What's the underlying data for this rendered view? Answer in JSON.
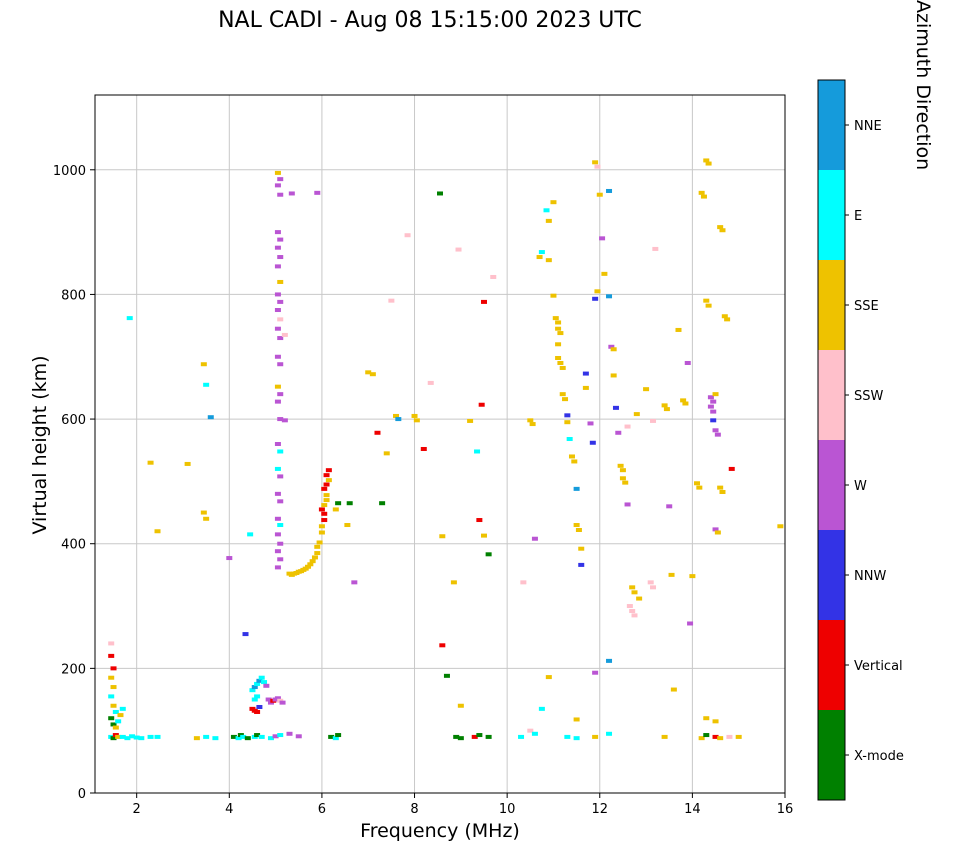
{
  "title": "NAL CADI - Aug 08 15:15:00 2023 UTC",
  "chart_data": {
    "type": "scatter",
    "title": "NAL CADI - Aug 08 15:15:00 2023 UTC",
    "xlabel": "Frequency (MHz)",
    "ylabel": "Virtual height (km)",
    "xlim": [
      1.1,
      16
    ],
    "ylim": [
      0,
      1120
    ],
    "xticks": [
      2,
      4,
      6,
      8,
      10,
      12,
      14,
      16
    ],
    "yticks": [
      0,
      200,
      400,
      600,
      800,
      1000
    ],
    "grid": true,
    "grid_color": "#c8c8c8",
    "colorbar": {
      "label": "Azimuth Direction",
      "categories": [
        {
          "code": "NNE",
          "label": "NNE",
          "color": "#159BDB"
        },
        {
          "code": "E",
          "label": "E",
          "color": "#00FFFF"
        },
        {
          "code": "SSE",
          "label": "SSE",
          "color": "#EEC200"
        },
        {
          "code": "SSW",
          "label": "SSW",
          "color": "#FFC0CB"
        },
        {
          "code": "W",
          "label": "W",
          "color": "#BA55D3"
        },
        {
          "code": "NNW",
          "label": "NNW",
          "color": "#3333E6"
        },
        {
          "code": "V",
          "label": "Vertical",
          "color": "#EE0000"
        },
        {
          "code": "X",
          "label": "X-mode",
          "color": "#008000"
        }
      ]
    },
    "points_format": [
      "frequency_mhz",
      "virtual_height_km",
      "azimuth_code"
    ],
    "points": [
      [
        1.45,
        90,
        "E"
      ],
      [
        1.5,
        88,
        "X"
      ],
      [
        1.55,
        93,
        "V"
      ],
      [
        1.6,
        90,
        "SSE"
      ],
      [
        1.7,
        90,
        "E"
      ],
      [
        1.8,
        88,
        "E"
      ],
      [
        1.9,
        91,
        "E"
      ],
      [
        2.0,
        89,
        "E"
      ],
      [
        2.1,
        88,
        "E"
      ],
      [
        2.3,
        90,
        "E"
      ],
      [
        2.45,
        90,
        "E"
      ],
      [
        3.3,
        88,
        "SSE"
      ],
      [
        3.5,
        90,
        "E"
      ],
      [
        3.7,
        88,
        "E"
      ],
      [
        4.1,
        90,
        "X"
      ],
      [
        4.2,
        88,
        "E"
      ],
      [
        4.25,
        93,
        "X"
      ],
      [
        4.3,
        90,
        "E"
      ],
      [
        4.4,
        88,
        "X"
      ],
      [
        4.55,
        90,
        "E"
      ],
      [
        4.6,
        93,
        "X"
      ],
      [
        4.7,
        90,
        "E"
      ],
      [
        4.9,
        88,
        "E"
      ],
      [
        5.0,
        91,
        "W"
      ],
      [
        5.1,
        93,
        "E"
      ],
      [
        5.3,
        95,
        "W"
      ],
      [
        5.5,
        91,
        "W"
      ],
      [
        6.2,
        90,
        "X"
      ],
      [
        6.3,
        88,
        "E"
      ],
      [
        6.35,
        93,
        "X"
      ],
      [
        8.9,
        90,
        "X"
      ],
      [
        9.0,
        88,
        "X"
      ],
      [
        9.3,
        90,
        "V"
      ],
      [
        9.4,
        93,
        "X"
      ],
      [
        9.6,
        90,
        "X"
      ],
      [
        10.3,
        90,
        "E"
      ],
      [
        10.5,
        100,
        "SSW"
      ],
      [
        10.6,
        95,
        "E"
      ],
      [
        11.3,
        90,
        "E"
      ],
      [
        11.5,
        88,
        "E"
      ],
      [
        11.9,
        90,
        "SSE"
      ],
      [
        12.2,
        95,
        "E"
      ],
      [
        13.4,
        90,
        "SSE"
      ],
      [
        14.2,
        88,
        "SSE"
      ],
      [
        14.3,
        93,
        "X"
      ],
      [
        14.5,
        90,
        "V"
      ],
      [
        14.6,
        88,
        "SSE"
      ],
      [
        14.8,
        90,
        "SSW"
      ],
      [
        15.0,
        90,
        "SSE"
      ],
      [
        1.45,
        240,
        "SSW"
      ],
      [
        1.45,
        220,
        "V"
      ],
      [
        1.5,
        200,
        "V"
      ],
      [
        1.45,
        185,
        "SSE"
      ],
      [
        1.5,
        170,
        "SSE"
      ],
      [
        1.45,
        155,
        "E"
      ],
      [
        1.5,
        140,
        "SSE"
      ],
      [
        1.55,
        130,
        "E"
      ],
      [
        1.45,
        120,
        "X"
      ],
      [
        1.5,
        110,
        "X"
      ],
      [
        1.55,
        105,
        "SSE"
      ],
      [
        1.6,
        115,
        "E"
      ],
      [
        1.65,
        125,
        "SSE"
      ],
      [
        1.7,
        135,
        "E"
      ],
      [
        1.85,
        762,
        "E"
      ],
      [
        2.3,
        530,
        "SSE"
      ],
      [
        2.45,
        420,
        "SSE"
      ],
      [
        3.1,
        528,
        "SSE"
      ],
      [
        3.45,
        688,
        "SSE"
      ],
      [
        3.5,
        655,
        "E"
      ],
      [
        3.6,
        603,
        "NNE"
      ],
      [
        3.45,
        450,
        "SSE"
      ],
      [
        3.5,
        440,
        "SSE"
      ],
      [
        4.0,
        377,
        "W"
      ],
      [
        4.35,
        255,
        "NNW"
      ],
      [
        4.45,
        415,
        "E"
      ],
      [
        4.5,
        135,
        "V"
      ],
      [
        4.55,
        132,
        "V"
      ],
      [
        4.6,
        130,
        "V"
      ],
      [
        4.65,
        138,
        "NNW"
      ],
      [
        4.55,
        150,
        "E"
      ],
      [
        4.6,
        155,
        "E"
      ],
      [
        4.5,
        165,
        "E"
      ],
      [
        4.55,
        170,
        "NNE"
      ],
      [
        4.6,
        175,
        "E"
      ],
      [
        4.65,
        180,
        "NNE"
      ],
      [
        4.7,
        185,
        "E"
      ],
      [
        4.75,
        178,
        "E"
      ],
      [
        4.8,
        172,
        "W"
      ],
      [
        4.85,
        150,
        "W"
      ],
      [
        4.9,
        145,
        "W"
      ],
      [
        4.95,
        148,
        "V"
      ],
      [
        5.0,
        150,
        "W"
      ],
      [
        5.05,
        152,
        "W"
      ],
      [
        5.1,
        148,
        "SSW"
      ],
      [
        5.15,
        145,
        "W"
      ],
      [
        5.05,
        995,
        "SSE"
      ],
      [
        5.1,
        985,
        "W"
      ],
      [
        5.05,
        975,
        "W"
      ],
      [
        5.1,
        960,
        "W"
      ],
      [
        5.35,
        962,
        "W"
      ],
      [
        5.05,
        900,
        "W"
      ],
      [
        5.1,
        888,
        "W"
      ],
      [
        5.05,
        875,
        "W"
      ],
      [
        5.1,
        860,
        "W"
      ],
      [
        5.05,
        845,
        "W"
      ],
      [
        5.1,
        820,
        "SSE"
      ],
      [
        5.05,
        800,
        "W"
      ],
      [
        5.1,
        788,
        "W"
      ],
      [
        5.05,
        775,
        "W"
      ],
      [
        5.1,
        760,
        "SSW"
      ],
      [
        5.05,
        745,
        "W"
      ],
      [
        5.1,
        730,
        "W"
      ],
      [
        5.2,
        735,
        "SSW"
      ],
      [
        5.05,
        700,
        "W"
      ],
      [
        5.1,
        688,
        "W"
      ],
      [
        5.05,
        652,
        "SSE"
      ],
      [
        5.1,
        640,
        "W"
      ],
      [
        5.05,
        628,
        "W"
      ],
      [
        5.1,
        600,
        "W"
      ],
      [
        5.2,
        598,
        "W"
      ],
      [
        5.05,
        560,
        "W"
      ],
      [
        5.1,
        548,
        "E"
      ],
      [
        5.05,
        520,
        "E"
      ],
      [
        5.1,
        508,
        "W"
      ],
      [
        5.05,
        480,
        "W"
      ],
      [
        5.1,
        468,
        "W"
      ],
      [
        5.05,
        440,
        "W"
      ],
      [
        5.1,
        430,
        "E"
      ],
      [
        5.05,
        415,
        "W"
      ],
      [
        5.1,
        400,
        "W"
      ],
      [
        5.05,
        388,
        "W"
      ],
      [
        5.1,
        375,
        "W"
      ],
      [
        5.05,
        362,
        "W"
      ],
      [
        5.9,
        963,
        "W"
      ],
      [
        5.3,
        352,
        "SSE"
      ],
      [
        5.35,
        350,
        "SSE"
      ],
      [
        5.4,
        352,
        "SSE"
      ],
      [
        5.45,
        353,
        "SSE"
      ],
      [
        5.5,
        355,
        "SSE"
      ],
      [
        5.55,
        356,
        "SSE"
      ],
      [
        5.6,
        358,
        "SSE"
      ],
      [
        5.65,
        360,
        "SSE"
      ],
      [
        5.7,
        363,
        "SSE"
      ],
      [
        5.75,
        367,
        "SSE"
      ],
      [
        5.8,
        372,
        "SSE"
      ],
      [
        5.85,
        378,
        "SSE"
      ],
      [
        5.9,
        385,
        "SSE"
      ],
      [
        5.9,
        395,
        "SSE"
      ],
      [
        5.95,
        402,
        "SSE"
      ],
      [
        6.0,
        418,
        "SSE"
      ],
      [
        6.0,
        428,
        "SSE"
      ],
      [
        6.05,
        438,
        "V"
      ],
      [
        6.05,
        448,
        "V"
      ],
      [
        6.0,
        455,
        "V"
      ],
      [
        6.05,
        462,
        "SSE"
      ],
      [
        6.1,
        470,
        "SSE"
      ],
      [
        6.1,
        478,
        "SSE"
      ],
      [
        6.05,
        488,
        "V"
      ],
      [
        6.1,
        495,
        "V"
      ],
      [
        6.15,
        502,
        "SSE"
      ],
      [
        6.1,
        510,
        "V"
      ],
      [
        6.15,
        518,
        "V"
      ],
      [
        6.3,
        455,
        "SSE"
      ],
      [
        6.35,
        465,
        "X"
      ],
      [
        6.55,
        430,
        "SSE"
      ],
      [
        6.6,
        465,
        "X"
      ],
      [
        6.7,
        338,
        "W"
      ],
      [
        7.0,
        675,
        "SSE"
      ],
      [
        7.1,
        672,
        "SSE"
      ],
      [
        7.2,
        578,
        "V"
      ],
      [
        7.4,
        545,
        "SSE"
      ],
      [
        7.3,
        465,
        "X"
      ],
      [
        7.5,
        790,
        "SSW"
      ],
      [
        7.6,
        605,
        "SSE"
      ],
      [
        7.65,
        600,
        "NNE"
      ],
      [
        7.85,
        895,
        "SSW"
      ],
      [
        8.0,
        605,
        "SSE"
      ],
      [
        8.05,
        598,
        "SSE"
      ],
      [
        8.2,
        552,
        "V"
      ],
      [
        8.35,
        658,
        "SSW"
      ],
      [
        8.55,
        962,
        "X"
      ],
      [
        8.6,
        412,
        "SSE"
      ],
      [
        8.6,
        237,
        "V"
      ],
      [
        8.7,
        188,
        "X"
      ],
      [
        8.85,
        338,
        "SSE"
      ],
      [
        8.95,
        872,
        "SSW"
      ],
      [
        9.0,
        140,
        "SSE"
      ],
      [
        9.2,
        597,
        "SSE"
      ],
      [
        9.35,
        548,
        "E"
      ],
      [
        9.4,
        438,
        "V"
      ],
      [
        9.45,
        623,
        "V"
      ],
      [
        9.5,
        413,
        "SSE"
      ],
      [
        9.5,
        788,
        "V"
      ],
      [
        9.6,
        383,
        "X"
      ],
      [
        9.7,
        828,
        "SSW"
      ],
      [
        10.35,
        338,
        "SSW"
      ],
      [
        10.5,
        598,
        "SSE"
      ],
      [
        10.55,
        592,
        "SSE"
      ],
      [
        10.6,
        408,
        "W"
      ],
      [
        10.7,
        860,
        "SSE"
      ],
      [
        10.75,
        868,
        "E"
      ],
      [
        10.75,
        135,
        "E"
      ],
      [
        10.85,
        935,
        "E"
      ],
      [
        10.9,
        918,
        "SSE"
      ],
      [
        10.9,
        855,
        "SSE"
      ],
      [
        10.9,
        186,
        "SSE"
      ],
      [
        11.0,
        948,
        "SSE"
      ],
      [
        11.0,
        798,
        "SSE"
      ],
      [
        11.05,
        762,
        "SSE"
      ],
      [
        11.1,
        755,
        "SSE"
      ],
      [
        11.1,
        745,
        "SSE"
      ],
      [
        11.15,
        738,
        "SSE"
      ],
      [
        11.1,
        720,
        "SSE"
      ],
      [
        11.1,
        698,
        "SSE"
      ],
      [
        11.15,
        690,
        "SSE"
      ],
      [
        11.2,
        682,
        "SSE"
      ],
      [
        11.2,
        640,
        "SSE"
      ],
      [
        11.25,
        632,
        "SSE"
      ],
      [
        11.3,
        606,
        "NNW"
      ],
      [
        11.3,
        595,
        "SSE"
      ],
      [
        11.35,
        568,
        "E"
      ],
      [
        11.4,
        540,
        "SSE"
      ],
      [
        11.45,
        532,
        "SSE"
      ],
      [
        11.5,
        488,
        "NNE"
      ],
      [
        11.5,
        430,
        "SSE"
      ],
      [
        11.55,
        422,
        "SSE"
      ],
      [
        11.6,
        392,
        "SSE"
      ],
      [
        11.6,
        366,
        "NNW"
      ],
      [
        11.5,
        118,
        "SSE"
      ],
      [
        11.7,
        673,
        "NNW"
      ],
      [
        11.7,
        650,
        "SSE"
      ],
      [
        11.8,
        593,
        "W"
      ],
      [
        11.85,
        562,
        "NNW"
      ],
      [
        11.9,
        793,
        "NNW"
      ],
      [
        11.95,
        805,
        "SSE"
      ],
      [
        11.9,
        1012,
        "SSE"
      ],
      [
        11.95,
        1005,
        "SSW"
      ],
      [
        11.9,
        193,
        "W"
      ],
      [
        12.0,
        960,
        "SSE"
      ],
      [
        12.05,
        890,
        "W"
      ],
      [
        12.1,
        833,
        "SSE"
      ],
      [
        12.2,
        966,
        "NNE"
      ],
      [
        12.2,
        797,
        "NNE"
      ],
      [
        12.2,
        212,
        "NNE"
      ],
      [
        12.25,
        716,
        "W"
      ],
      [
        12.3,
        712,
        "SSE"
      ],
      [
        12.3,
        670,
        "SSE"
      ],
      [
        12.35,
        618,
        "NNW"
      ],
      [
        12.4,
        578,
        "W"
      ],
      [
        12.45,
        525,
        "SSE"
      ],
      [
        12.5,
        518,
        "SSE"
      ],
      [
        12.5,
        505,
        "SSE"
      ],
      [
        12.55,
        498,
        "SSE"
      ],
      [
        12.6,
        588,
        "SSW"
      ],
      [
        12.6,
        463,
        "W"
      ],
      [
        12.65,
        300,
        "SSW"
      ],
      [
        12.7,
        292,
        "SSW"
      ],
      [
        12.75,
        285,
        "SSW"
      ],
      [
        12.7,
        330,
        "SSE"
      ],
      [
        12.75,
        322,
        "SSE"
      ],
      [
        12.8,
        608,
        "SSE"
      ],
      [
        12.85,
        312,
        "SSE"
      ],
      [
        13.0,
        648,
        "SSE"
      ],
      [
        13.1,
        338,
        "SSW"
      ],
      [
        13.15,
        330,
        "SSW"
      ],
      [
        13.15,
        597,
        "SSW"
      ],
      [
        13.2,
        873,
        "SSW"
      ],
      [
        13.4,
        622,
        "SSE"
      ],
      [
        13.45,
        616,
        "SSE"
      ],
      [
        13.5,
        460,
        "W"
      ],
      [
        13.55,
        350,
        "SSE"
      ],
      [
        13.6,
        166,
        "SSE"
      ],
      [
        13.7,
        743,
        "SSE"
      ],
      [
        13.8,
        630,
        "SSE"
      ],
      [
        13.85,
        625,
        "SSE"
      ],
      [
        13.9,
        690,
        "W"
      ],
      [
        13.95,
        272,
        "W"
      ],
      [
        14.0,
        348,
        "SSE"
      ],
      [
        14.1,
        497,
        "SSE"
      ],
      [
        14.15,
        490,
        "SSE"
      ],
      [
        14.2,
        963,
        "SSE"
      ],
      [
        14.25,
        957,
        "SSE"
      ],
      [
        14.3,
        1015,
        "SSE"
      ],
      [
        14.35,
        1010,
        "SSE"
      ],
      [
        14.3,
        790,
        "SSE"
      ],
      [
        14.35,
        782,
        "SSE"
      ],
      [
        14.3,
        120,
        "SSE"
      ],
      [
        14.4,
        635,
        "W"
      ],
      [
        14.45,
        628,
        "W"
      ],
      [
        14.4,
        620,
        "W"
      ],
      [
        14.45,
        612,
        "W"
      ],
      [
        14.5,
        640,
        "SSE"
      ],
      [
        14.45,
        598,
        "NNW"
      ],
      [
        14.5,
        582,
        "W"
      ],
      [
        14.55,
        575,
        "W"
      ],
      [
        14.5,
        423,
        "W"
      ],
      [
        14.55,
        418,
        "SSE"
      ],
      [
        14.5,
        115,
        "SSE"
      ],
      [
        14.6,
        908,
        "SSE"
      ],
      [
        14.65,
        903,
        "SSE"
      ],
      [
        14.6,
        490,
        "SSE"
      ],
      [
        14.65,
        483,
        "SSE"
      ],
      [
        14.7,
        765,
        "SSE"
      ],
      [
        14.75,
        760,
        "SSE"
      ],
      [
        14.85,
        520,
        "V"
      ],
      [
        15.9,
        428,
        "SSE"
      ]
    ]
  }
}
